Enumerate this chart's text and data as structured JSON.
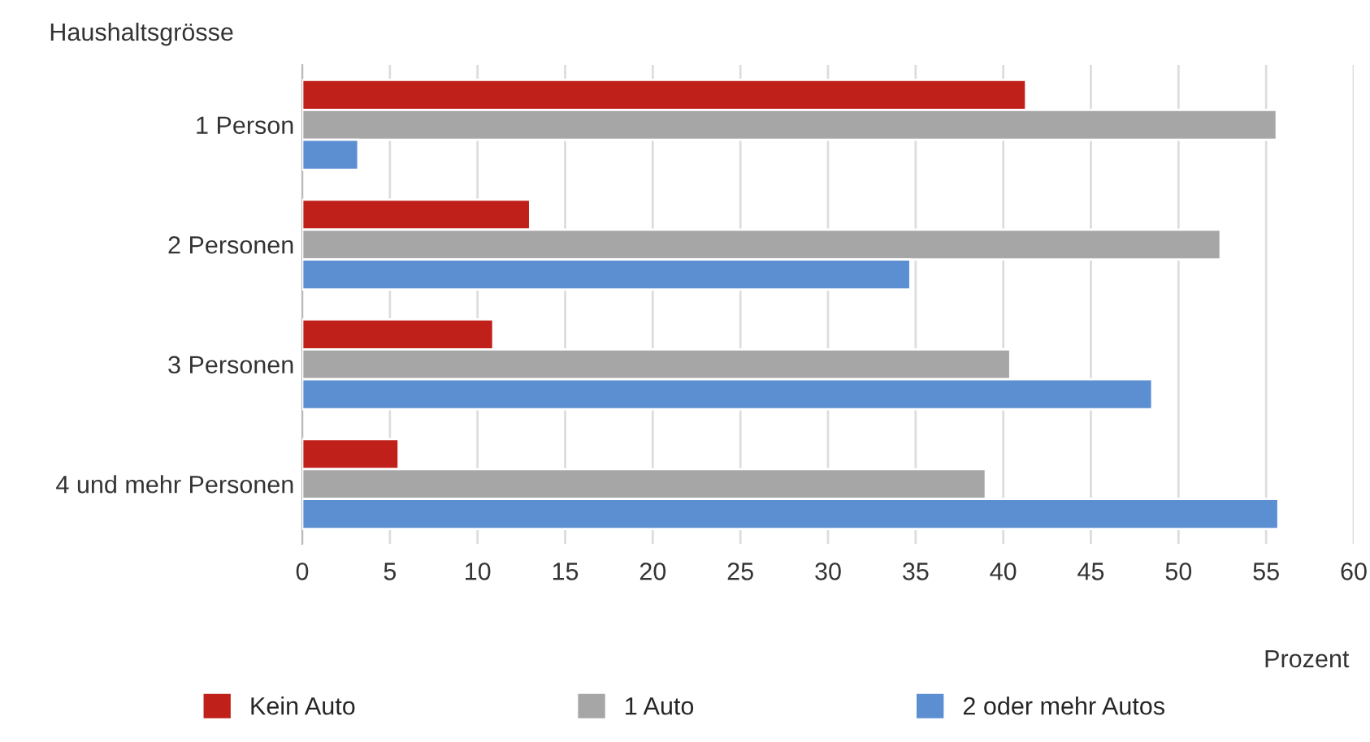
{
  "chart_data": {
    "type": "bar",
    "orientation": "horizontal",
    "xlabel": "Prozent",
    "ylabel": "Haushaltsgrösse",
    "categories": [
      "1 Person",
      "2 Personen",
      "3 Personen",
      "4 und mehr Personen"
    ],
    "series": [
      {
        "name": "Kein Auto",
        "color": "#c0201a",
        "values": [
          41.3,
          13.0,
          10.9,
          5.5
        ]
      },
      {
        "name": "1 Auto",
        "color": "#a6a6a6",
        "values": [
          55.6,
          52.4,
          40.4,
          39.0
        ]
      },
      {
        "name": "2 oder mehr Autos",
        "color": "#5b8fd2",
        "values": [
          3.2,
          34.7,
          48.5,
          55.7
        ]
      }
    ],
    "xlim": [
      0,
      60
    ],
    "xticks": [
      0,
      5,
      10,
      15,
      20,
      25,
      30,
      35,
      40,
      45,
      50,
      55,
      60
    ],
    "grid": "x",
    "legend": "bottom"
  }
}
